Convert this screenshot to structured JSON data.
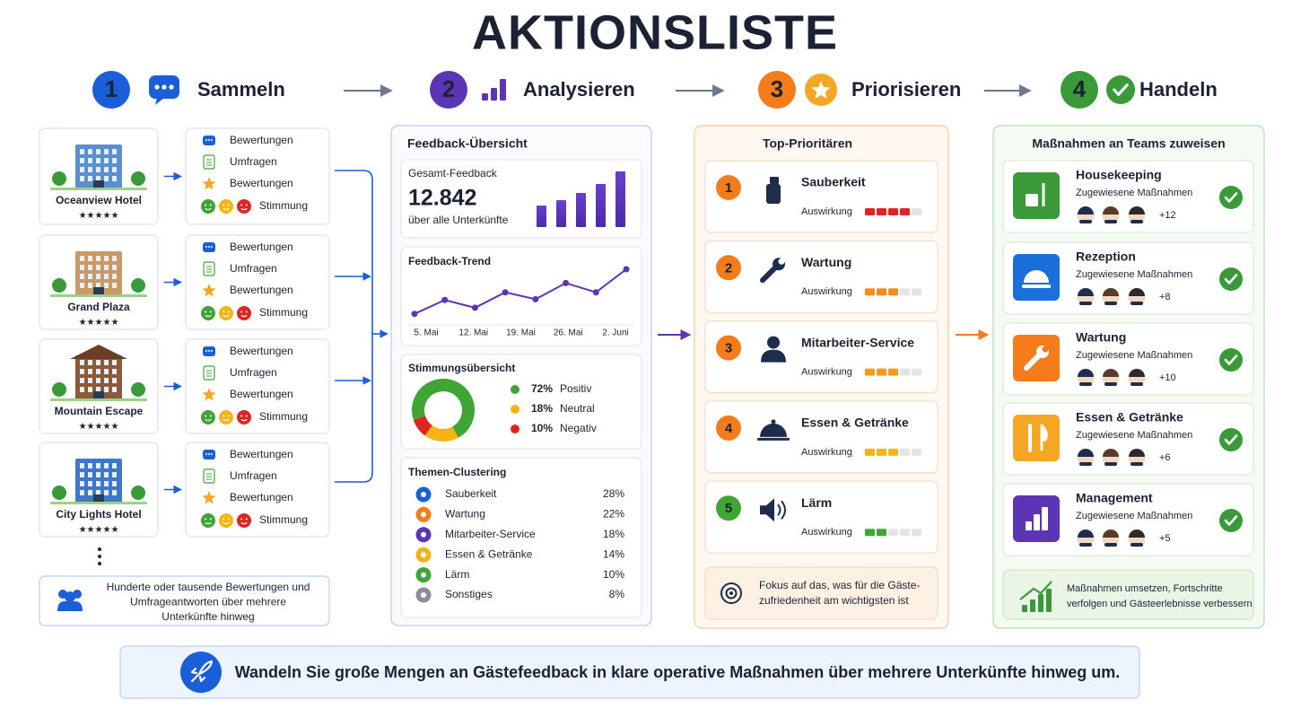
{
  "title": "AKTIONSLISTE",
  "steps": [
    {
      "number": "1",
      "label": "Sammeln",
      "color": "#1a5fd8"
    },
    {
      "number": "2",
      "label": "Analysieren",
      "color": "#5b35b5"
    },
    {
      "number": "3",
      "label": "Priorisieren",
      "color": "#f57c1a"
    },
    {
      "number": "4",
      "label": "Handeln",
      "color": "#3a9a3a"
    }
  ],
  "hotels": [
    {
      "name": "Oceanview Hotel",
      "rating": "★★★★★",
      "sources": [
        "Bewertungen",
        "Umfragen",
        "Bewertungen",
        "Stimmung"
      ]
    },
    {
      "name": "Grand Plaza",
      "rating": "★★★★★",
      "sources": [
        "Bewertungen",
        "Umfragen",
        "Bewertungen",
        "Stimmung"
      ]
    },
    {
      "name": "Mountain Escape",
      "rating": "★★★★★",
      "sources": [
        "Bewertungen",
        "Umfragen",
        "Bewertungen",
        "Stimmung"
      ]
    },
    {
      "name": "City Lights Hotel",
      "rating": "★★★★★",
      "sources": [
        "Bewertungen",
        "Umfragen",
        "Bewertungen",
        "Stimmung"
      ]
    }
  ],
  "collect_note": [
    "Hunderte oder tausende Bewertungen und",
    "Umfrageantworten über mehrere",
    "Unterkünfte hinweg"
  ],
  "analysis": {
    "title": "Feedback-Übersicht",
    "total": {
      "label": "Gesamt-Feedback",
      "value": "12.842",
      "subtitle": "über alle Unterkünfte"
    },
    "trend": {
      "title": "Feedback-Trend",
      "type": "line",
      "x_labels": [
        "5. Mai",
        "12. Mai",
        "19. Mai",
        "26. Mai",
        "2. Juni"
      ],
      "values": [
        12,
        30,
        20,
        40,
        31,
        52,
        40,
        70
      ],
      "ylim": [
        0,
        70
      ],
      "color": "#5b35b5"
    },
    "sentiment": {
      "title": "Stimmungsübersicht",
      "type": "pie",
      "names": [
        "Positiv",
        "Neutral",
        "Negativ"
      ],
      "values": [
        72,
        18,
        10
      ],
      "value_labels": [
        "72%",
        "18%",
        "10%"
      ],
      "colors": [
        "#3fa535",
        "#f5b416",
        "#e02424"
      ]
    },
    "clusters": {
      "title": "Themen-Clustering",
      "items": [
        {
          "name": "Sauberkeit",
          "share": "28%",
          "color": "#1a5fd8"
        },
        {
          "name": "Wartung",
          "share": "22%",
          "color": "#f57c1a"
        },
        {
          "name": "Mitarbeiter-Service",
          "share": "18%",
          "color": "#5b35b5"
        },
        {
          "name": "Essen & Getränke",
          "share": "14%",
          "color": "#f5b416"
        },
        {
          "name": "Lärm",
          "share": "10%",
          "color": "#3fa535"
        },
        {
          "name": "Sonstiges",
          "share": "8%",
          "color": "#8a8f99"
        }
      ]
    }
  },
  "priorities": {
    "title": "Top-Prioritären",
    "items": [
      {
        "rank": "1",
        "name": "Sauberkeit",
        "impact_label": "Auswirkung",
        "impact": 4,
        "color": "#e02424",
        "rank_color": "#f57c1a"
      },
      {
        "rank": "2",
        "name": "Wartung",
        "impact_label": "Auswirkung",
        "impact": 3,
        "color": "#f58a1f",
        "rank_color": "#f57c1a"
      },
      {
        "rank": "3",
        "name": "Mitarbeiter-Service",
        "impact_label": "Auswirkung",
        "impact": 3,
        "color": "#f59a1f",
        "rank_color": "#f57c1a"
      },
      {
        "rank": "4",
        "name": "Essen & Getränke",
        "impact_label": "Auswirkung",
        "impact": 3,
        "color": "#f5b416",
        "rank_color": "#f57c1a"
      },
      {
        "rank": "5",
        "name": "Lärm",
        "impact_label": "Auswirkung",
        "impact": 2,
        "color": "#3fa535",
        "rank_color": "#3fa535"
      }
    ],
    "focus": [
      "Fokus auf das, was für die Gäste-",
      "zufriedenheit am wichtigsten ist"
    ]
  },
  "teams": {
    "title": "Maßnahmen an Teams zuweisen",
    "items": [
      {
        "name": "Housekeeping",
        "subtitle": "Zugewiesene Maßnahmen",
        "extra": "+12",
        "color": "#3a9a3a"
      },
      {
        "name": "Rezeption",
        "subtitle": "Zugewiesene Maßnahmen",
        "extra": "+8",
        "color": "#1a6fd8"
      },
      {
        "name": "Wartung",
        "subtitle": "Zugewiesene Maßnahmen",
        "extra": "+10",
        "color": "#f57c1a"
      },
      {
        "name": "Essen & Getränke",
        "subtitle": "Zugewiesene Maßnahmen",
        "extra": "+6",
        "color": "#f5a623"
      },
      {
        "name": "Management",
        "subtitle": "Zugewiesene Maßnahmen",
        "extra": "+5",
        "color": "#5b35b5"
      }
    ],
    "note": [
      "Maßnahmen umsetzen, Fortschritte",
      "verfolgen und Gästeerlebnisse verbessern"
    ]
  },
  "footer": "Wandeln Sie große Mengen an Gästefeedback in klare operative Maßnahmen über mehrere Unterkünfte hinweg um."
}
